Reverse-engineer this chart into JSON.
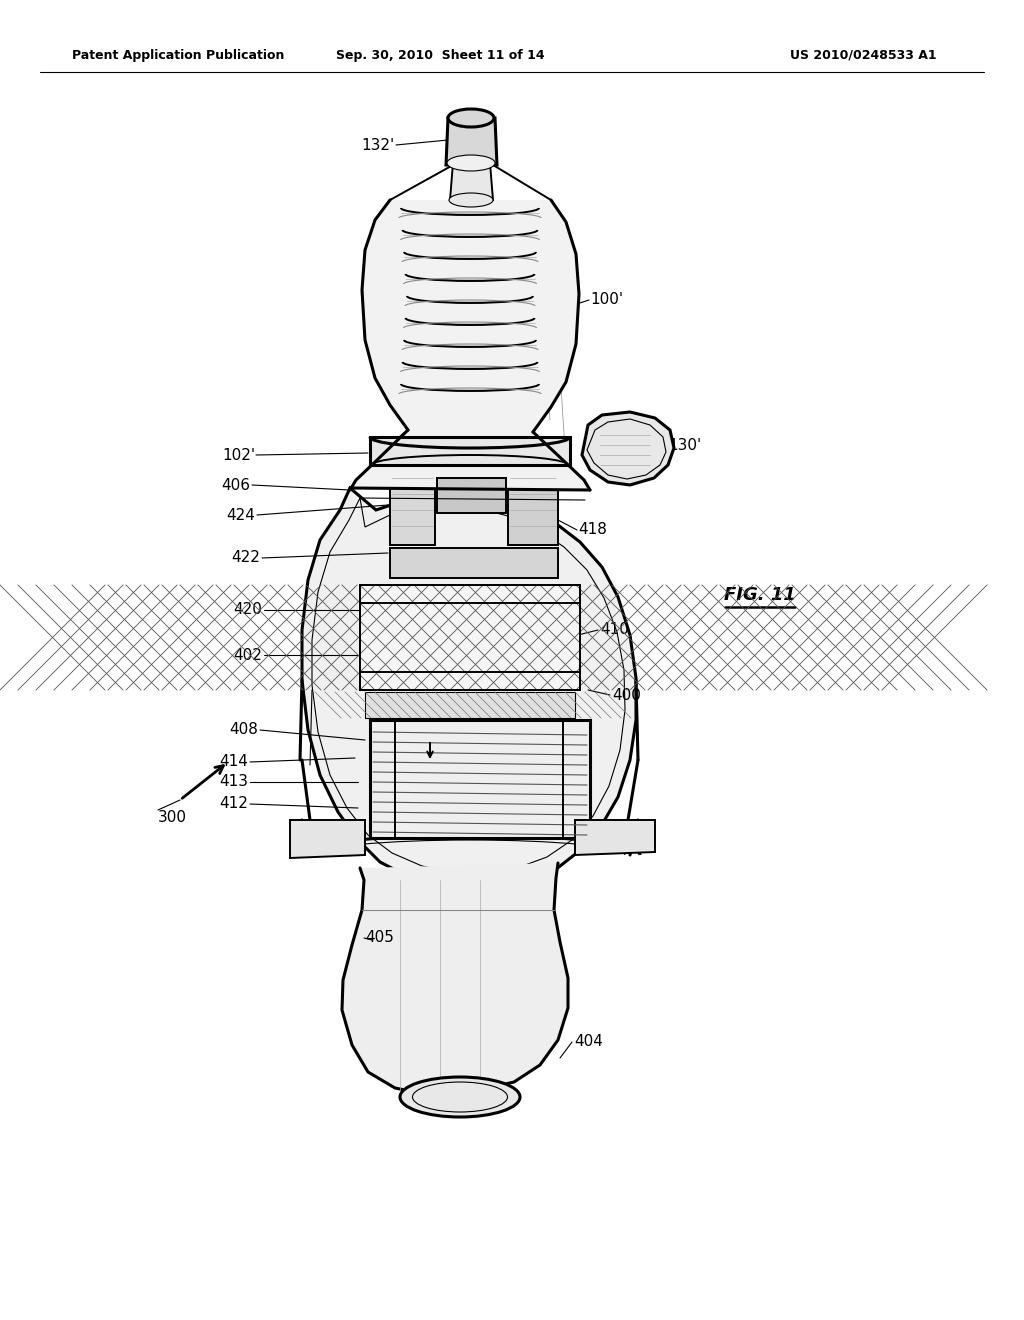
{
  "bg_color": "#ffffff",
  "line_color": "#000000",
  "header_left": "Patent Application Publication",
  "header_center": "Sep. 30, 2010  Sheet 11 of 14",
  "header_right": "US 2010/0248533 A1",
  "fig_label": "FIG. 11",
  "lw_heavy": 2.2,
  "lw_med": 1.4,
  "lw_light": 0.8,
  "lw_xlight": 0.5,
  "gray_light": "#f0f0f0",
  "gray_mid": "#d8d8d8",
  "gray_dark": "#aaaaaa"
}
